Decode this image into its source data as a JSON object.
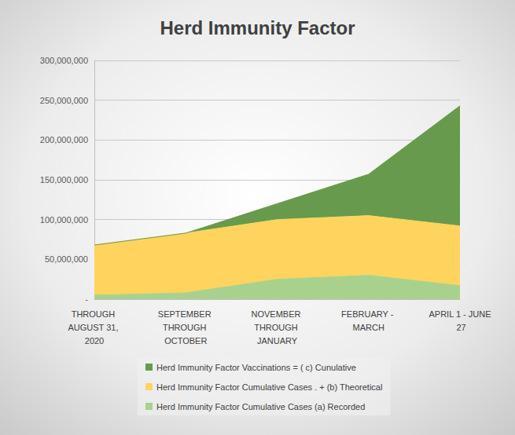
{
  "chart_data": {
    "type": "area",
    "title": "Herd Immunity Factor",
    "categories": [
      "THROUGH AUGUST 31, 2020",
      "SEPTEMBER THROUGH OCTOBER",
      "NOVEMBER THROUGH JANUARY",
      "FEBRUARY - MARCH",
      "APRIL 1 - JUNE 27"
    ],
    "series": [
      {
        "name": "Herd Immunity Factor Cumulative Cases (a) Recorded",
        "color": "#a9d18e",
        "values": [
          5000000,
          8000000,
          25000000,
          30000000,
          17000000
        ]
      },
      {
        "name": "Herd Immunity Factor Cumulative Cases . + (b) Theoretical",
        "color": "#ffd45e",
        "values": [
          63000000,
          75000000,
          75000000,
          75000000,
          75000000
        ]
      },
      {
        "name": "Herd Immunity Factor Vaccinations = ( c) Cunulative",
        "color": "#679a4c",
        "values": [
          0,
          0,
          20000000,
          52000000,
          151000000
        ]
      }
    ],
    "ylim": [
      0,
      300000000
    ],
    "yticks": [
      {
        "value": 0,
        "label": "-"
      },
      {
        "value": 50000000,
        "label": "50,000,000"
      },
      {
        "value": 100000000,
        "label": "100,000,000"
      },
      {
        "value": 150000000,
        "label": "150,000,000"
      },
      {
        "value": 200000000,
        "label": "200,000,000"
      },
      {
        "value": 250000000,
        "label": "250,000,000"
      },
      {
        "value": 300000000,
        "label": "300,000,000"
      }
    ],
    "stacked": true,
    "grid": true,
    "legend": "bottom"
  }
}
